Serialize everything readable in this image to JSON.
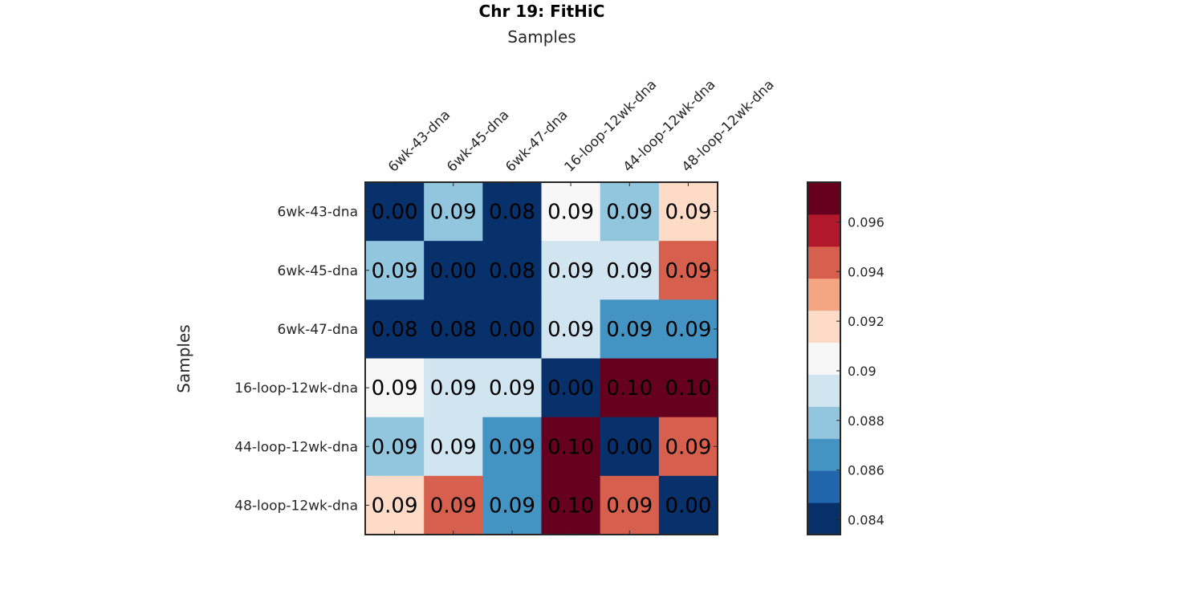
{
  "chart_data": {
    "type": "heatmap",
    "title": "Chr 19: FitHiC",
    "xlabel": "Samples",
    "ylabel": "Samples",
    "x_categories": [
      "6wk-43-dna",
      "6wk-45-dna",
      "6wk-47-dna",
      "16-loop-12wk-dna",
      "44-loop-12wk-dna",
      "48-loop-12wk-dna"
    ],
    "y_categories": [
      "6wk-43-dna",
      "6wk-45-dna",
      "6wk-47-dna",
      "16-loop-12wk-dna",
      "44-loop-12wk-dna",
      "48-loop-12wk-dna"
    ],
    "cell_labels": [
      [
        "0.00",
        "0.09",
        "0.08",
        "0.09",
        "0.09",
        "0.09"
      ],
      [
        "0.09",
        "0.00",
        "0.08",
        "0.09",
        "0.09",
        "0.09"
      ],
      [
        "0.08",
        "0.08",
        "0.00",
        "0.09",
        "0.09",
        "0.09"
      ],
      [
        "0.09",
        "0.09",
        "0.09",
        "0.00",
        "0.10",
        "0.10"
      ],
      [
        "0.09",
        "0.09",
        "0.09",
        "0.10",
        "0.00",
        "0.09"
      ],
      [
        "0.09",
        "0.09",
        "0.09",
        "0.10",
        "0.09",
        "0.00"
      ]
    ],
    "color_level": [
      [
        0,
        3,
        0,
        5,
        3,
        6
      ],
      [
        3,
        0,
        0,
        4,
        4,
        8
      ],
      [
        0,
        0,
        0,
        4,
        2,
        2
      ],
      [
        5,
        4,
        4,
        0,
        10,
        10
      ],
      [
        3,
        4,
        2,
        10,
        0,
        8
      ],
      [
        6,
        8,
        2,
        10,
        8,
        0
      ]
    ],
    "colormap": [
      "#08306b",
      "#2166ac",
      "#4393c3",
      "#92c5de",
      "#d1e5f0",
      "#f7f7f7",
      "#fddbc7",
      "#f4a582",
      "#d6604d",
      "#b2182b",
      "#67001f"
    ],
    "colorbar": {
      "range": [
        0.0834,
        0.0976
      ],
      "ticks": [
        0.084,
        0.086,
        0.088,
        0.09,
        0.092,
        0.094,
        0.096
      ],
      "tick_labels": [
        "0.084",
        "0.086",
        "0.088",
        "0.09",
        "0.092",
        "0.094",
        "0.096"
      ],
      "placement": "right"
    }
  }
}
